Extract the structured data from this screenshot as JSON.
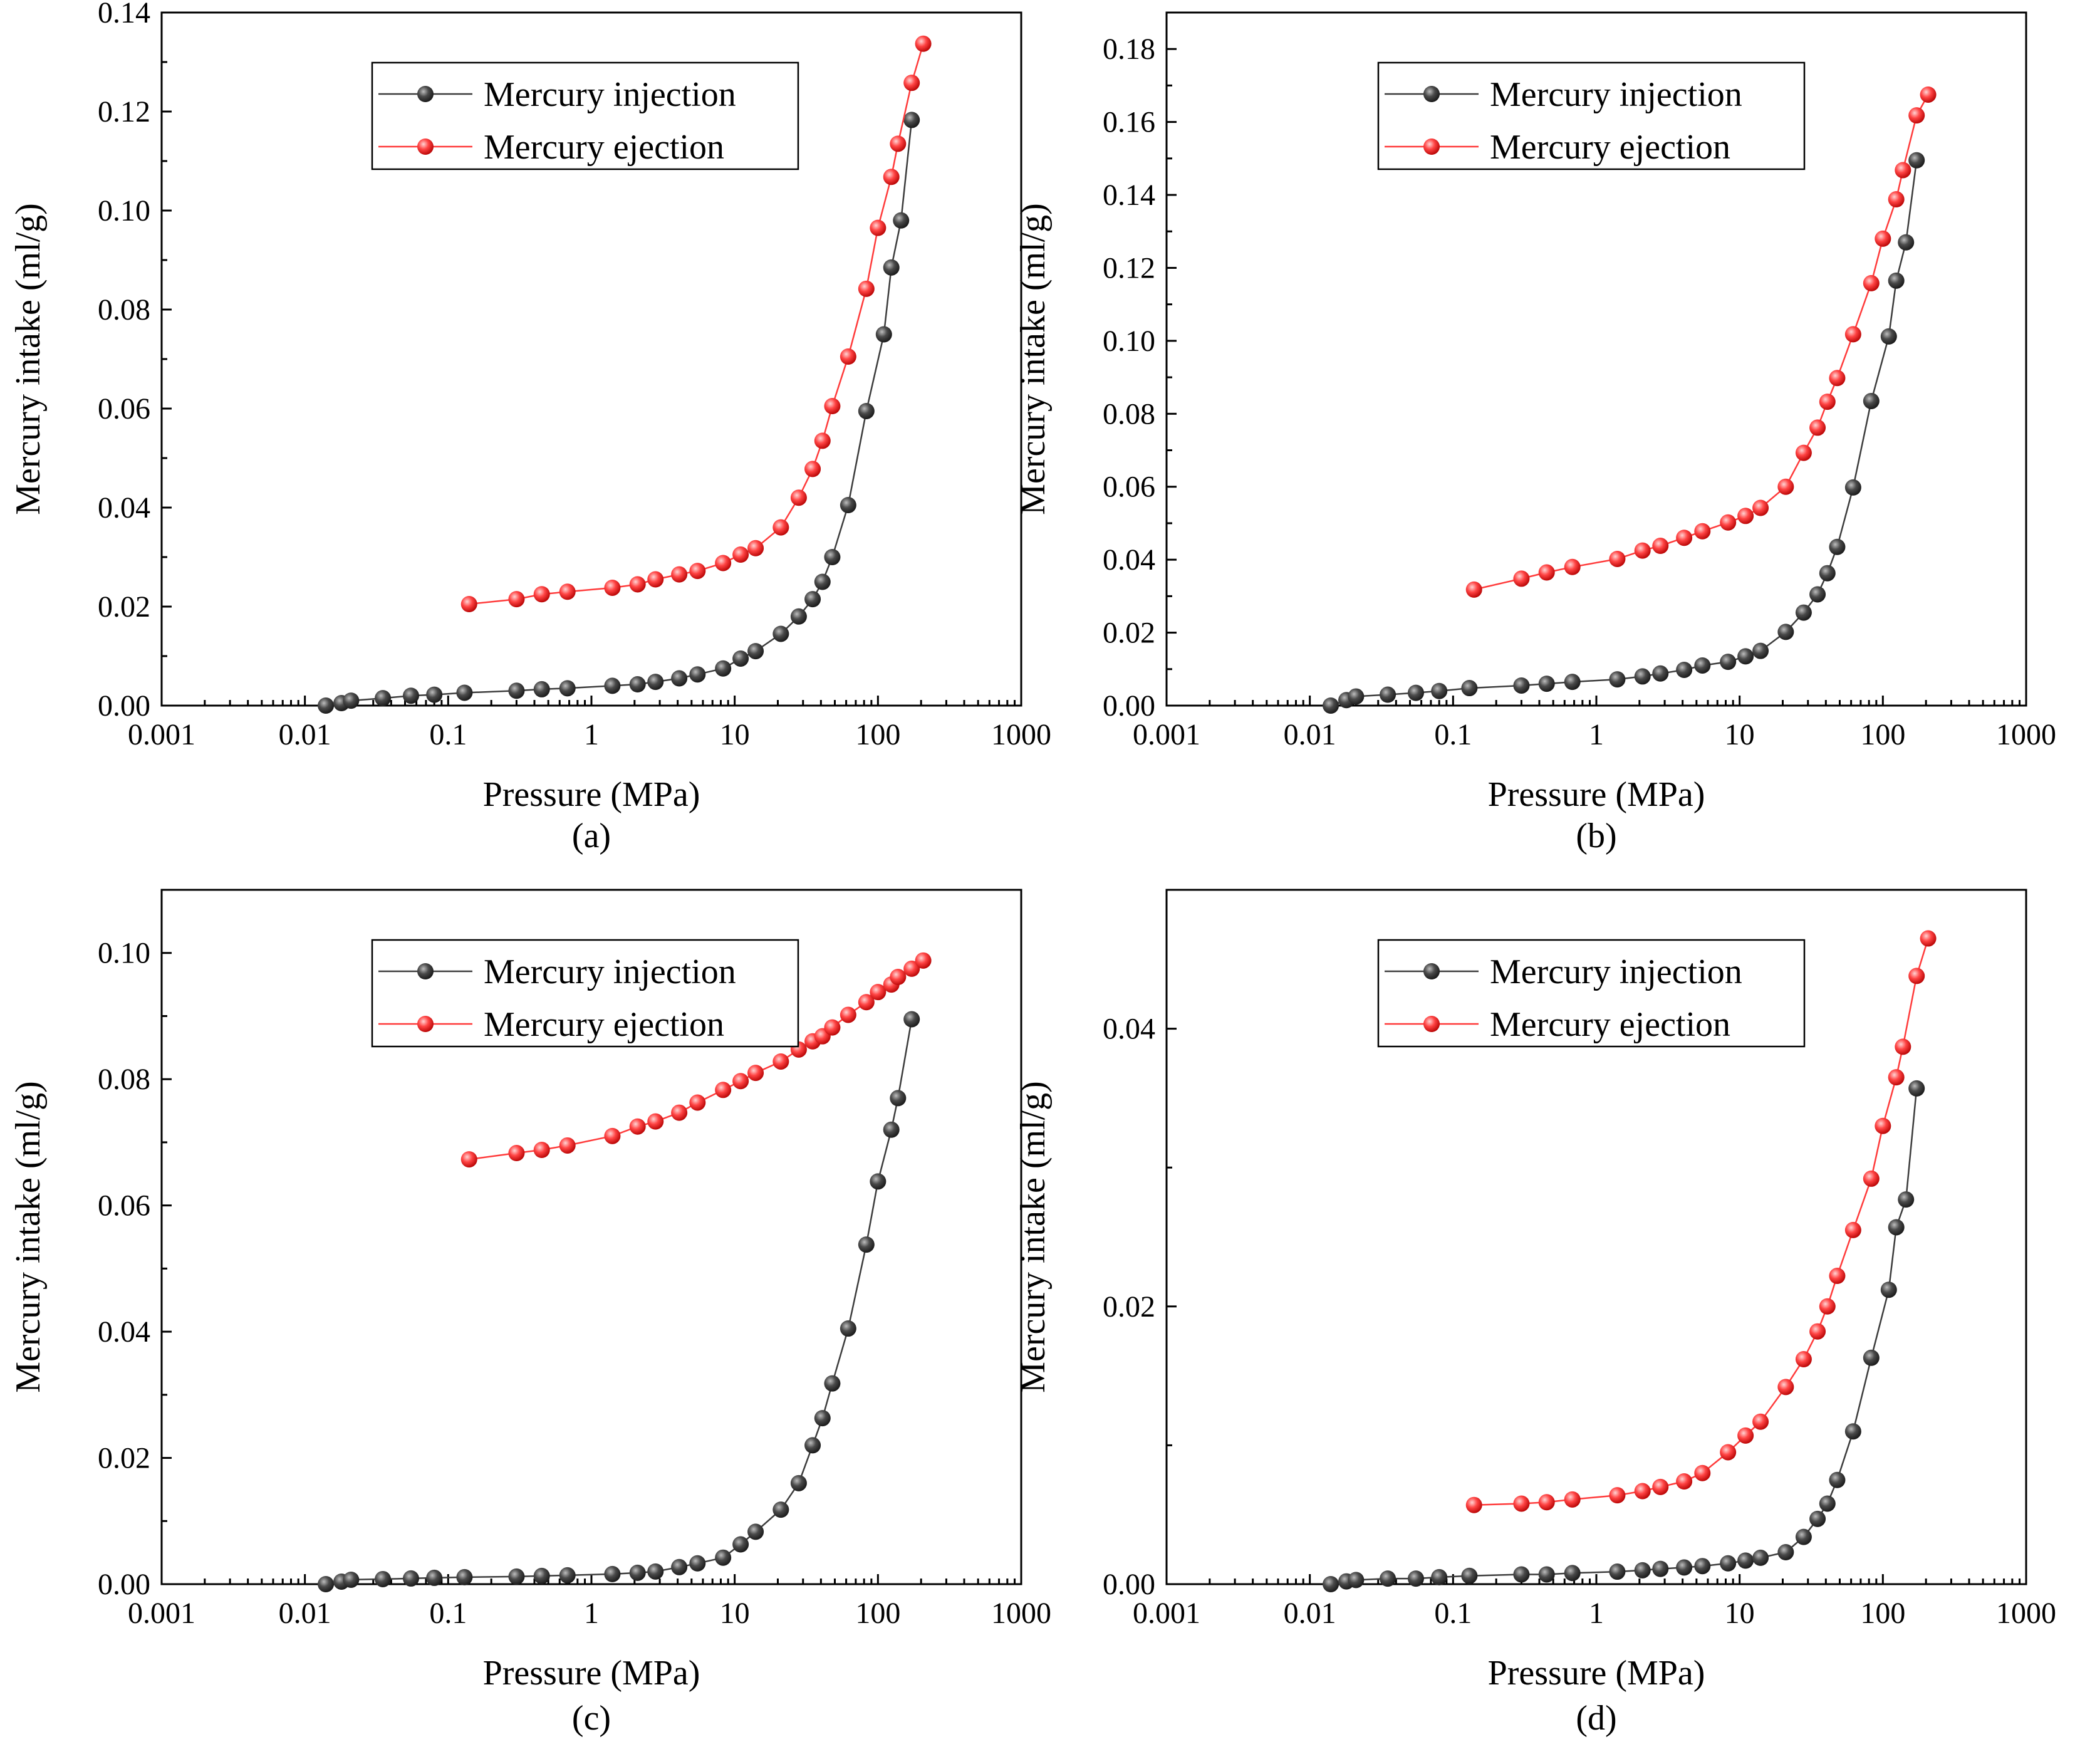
{
  "chart_data": [
    {
      "type": "scatter",
      "panel_label": "(a)",
      "xlabel": "Pressure (MPa)",
      "ylabel": "Mercury intake (ml/g)",
      "x_scale": "log",
      "xlim": [
        0.001,
        1000
      ],
      "ylim": [
        0,
        0.14
      ],
      "x_ticks": [
        "0.001",
        "0.01",
        "0.1",
        "1",
        "10",
        "100",
        "1000"
      ],
      "y_ticks": [
        "0.00",
        "0.02",
        "0.04",
        "0.06",
        "0.08",
        "0.10",
        "0.12",
        "0.14"
      ],
      "legend_position": "top-center",
      "series": [
        {
          "name": "Mercury injection",
          "color": "#3c3c3c",
          "x": [
            0.014,
            0.018,
            0.021,
            0.035,
            0.055,
            0.08,
            0.13,
            0.3,
            0.45,
            0.68,
            1.4,
            2.1,
            2.8,
            4.1,
            5.5,
            8.3,
            11,
            14,
            21,
            28,
            35,
            41,
            48,
            62,
            83,
            110,
            124,
            145,
            172
          ],
          "y": [
            0.0,
            0.0005,
            0.001,
            0.0015,
            0.002,
            0.0022,
            0.0026,
            0.003,
            0.0033,
            0.0035,
            0.004,
            0.0043,
            0.0048,
            0.0055,
            0.0063,
            0.0075,
            0.0095,
            0.011,
            0.0145,
            0.018,
            0.0215,
            0.025,
            0.03,
            0.0405,
            0.0595,
            0.075,
            0.0885,
            0.098,
            0.1183
          ]
        },
        {
          "name": "Mercury ejection",
          "color": "#ff3a3a",
          "x": [
            0.14,
            0.3,
            0.45,
            0.68,
            1.4,
            2.1,
            2.8,
            4.1,
            5.5,
            8.3,
            11,
            14,
            21,
            28,
            35,
            41,
            48,
            62,
            83,
            100,
            124,
            138,
            172,
            207
          ],
          "y": [
            0.0205,
            0.0215,
            0.0225,
            0.023,
            0.0238,
            0.0245,
            0.0255,
            0.0265,
            0.0272,
            0.0288,
            0.0305,
            0.0318,
            0.036,
            0.042,
            0.0478,
            0.0535,
            0.0605,
            0.0705,
            0.0842,
            0.0965,
            0.1068,
            0.1135,
            0.1258,
            0.1337
          ]
        }
      ]
    },
    {
      "type": "scatter",
      "panel_label": "(b)",
      "xlabel": "Pressure (MPa)",
      "ylabel": "Mercury intake (ml/g)",
      "x_scale": "log",
      "xlim": [
        0.001,
        1000
      ],
      "ylim": [
        0,
        0.19
      ],
      "x_ticks": [
        "0.001",
        "0.01",
        "0.1",
        "1",
        "10",
        "100",
        "1000"
      ],
      "y_ticks": [
        "0.00",
        "0.02",
        "0.04",
        "0.06",
        "0.08",
        "0.10",
        "0.12",
        "0.14",
        "0.16",
        "0.18"
      ],
      "legend_position": "top-center",
      "series": [
        {
          "name": "Mercury injection",
          "color": "#3c3c3c",
          "x": [
            0.014,
            0.018,
            0.021,
            0.035,
            0.055,
            0.08,
            0.13,
            0.3,
            0.45,
            0.68,
            1.4,
            2.1,
            2.8,
            4.1,
            5.5,
            8.3,
            11,
            14,
            21,
            28,
            35,
            41,
            48,
            62,
            83,
            110,
            124,
            145,
            172
          ],
          "y": [
            0.0,
            0.0015,
            0.0025,
            0.003,
            0.0035,
            0.004,
            0.0048,
            0.0055,
            0.006,
            0.0065,
            0.0072,
            0.008,
            0.0088,
            0.0098,
            0.011,
            0.012,
            0.0135,
            0.015,
            0.0202,
            0.0255,
            0.0305,
            0.0363,
            0.0435,
            0.0598,
            0.0835,
            0.1012,
            0.1165,
            0.127,
            0.1495
          ]
        },
        {
          "name": "Mercury ejection",
          "color": "#ff3a3a",
          "x": [
            0.14,
            0.3,
            0.45,
            0.68,
            1.4,
            2.1,
            2.8,
            4.1,
            5.5,
            8.3,
            11,
            14,
            21,
            28,
            35,
            41,
            48,
            62,
            83,
            100,
            124,
            138,
            172,
            207
          ],
          "y": [
            0.0318,
            0.0348,
            0.0365,
            0.038,
            0.0402,
            0.0425,
            0.0438,
            0.046,
            0.0478,
            0.0502,
            0.052,
            0.0542,
            0.06,
            0.0693,
            0.0762,
            0.0833,
            0.0898,
            0.1018,
            0.1158,
            0.128,
            0.1388,
            0.1468,
            0.1618,
            0.1675
          ]
        }
      ]
    },
    {
      "type": "scatter",
      "panel_label": "(c)",
      "xlabel": "Pressure (MPa)",
      "ylabel": "Mercury intake (ml/g)",
      "x_scale": "log",
      "xlim": [
        0.001,
        1000
      ],
      "ylim": [
        0,
        0.11
      ],
      "x_ticks": [
        "0.001",
        "0.01",
        "0.1",
        "1",
        "10",
        "100",
        "1000"
      ],
      "y_ticks": [
        "0.00",
        "0.02",
        "0.04",
        "0.06",
        "0.08",
        "0.10"
      ],
      "legend_position": "top-center",
      "series": [
        {
          "name": "Mercury injection",
          "color": "#3c3c3c",
          "x": [
            0.014,
            0.018,
            0.021,
            0.035,
            0.055,
            0.08,
            0.13,
            0.3,
            0.45,
            0.68,
            1.4,
            2.1,
            2.8,
            4.1,
            5.5,
            8.3,
            11,
            14,
            21,
            28,
            35,
            41,
            48,
            62,
            83,
            100,
            124,
            138,
            172
          ],
          "y": [
            0.0,
            0.0004,
            0.0007,
            0.0008,
            0.0009,
            0.001,
            0.0011,
            0.0012,
            0.0013,
            0.0014,
            0.0016,
            0.0018,
            0.002,
            0.0027,
            0.0033,
            0.0042,
            0.0063,
            0.0083,
            0.0118,
            0.016,
            0.022,
            0.0263,
            0.0318,
            0.0405,
            0.0538,
            0.0638,
            0.072,
            0.077,
            0.0895
          ]
        },
        {
          "name": "Mercury ejection",
          "color": "#ff3a3a",
          "x": [
            0.14,
            0.3,
            0.45,
            0.68,
            1.4,
            2.1,
            2.8,
            4.1,
            5.5,
            8.3,
            11,
            14,
            21,
            28,
            35,
            41,
            48,
            62,
            83,
            100,
            124,
            138,
            172,
            207
          ],
          "y": [
            0.0673,
            0.0683,
            0.0688,
            0.0695,
            0.071,
            0.0725,
            0.0733,
            0.0747,
            0.0763,
            0.0783,
            0.0797,
            0.081,
            0.0828,
            0.0847,
            0.086,
            0.0868,
            0.0882,
            0.0902,
            0.0922,
            0.0938,
            0.095,
            0.0962,
            0.0975,
            0.0988
          ]
        }
      ]
    },
    {
      "type": "scatter",
      "panel_label": "(d)",
      "xlabel": "Pressure (MPa)",
      "ylabel": "Mercury intake (ml/g)",
      "x_scale": "log",
      "xlim": [
        0.001,
        1000
      ],
      "ylim": [
        0,
        0.05
      ],
      "x_ticks": [
        "0.001",
        "0.01",
        "0.1",
        "1",
        "10",
        "100",
        "1000"
      ],
      "y_ticks": [
        "0.00",
        "0.02",
        "0.04"
      ],
      "y_tick_values": [
        0,
        0.02,
        0.04
      ],
      "legend_position": "top-center",
      "series": [
        {
          "name": "Mercury injection",
          "color": "#3c3c3c",
          "x": [
            0.014,
            0.018,
            0.021,
            0.035,
            0.055,
            0.08,
            0.13,
            0.3,
            0.45,
            0.68,
            1.4,
            2.1,
            2.8,
            4.1,
            5.5,
            8.3,
            11,
            14,
            21,
            28,
            35,
            41,
            48,
            62,
            83,
            110,
            124,
            145,
            172
          ],
          "y": [
            0.0,
            0.0002,
            0.0003,
            0.0004,
            0.0004,
            0.0005,
            0.0006,
            0.0007,
            0.0007,
            0.0008,
            0.0009,
            0.001,
            0.0011,
            0.0012,
            0.0013,
            0.0015,
            0.0017,
            0.0019,
            0.0023,
            0.0034,
            0.0047,
            0.0058,
            0.0075,
            0.011,
            0.0163,
            0.0212,
            0.0257,
            0.0277,
            0.0357
          ]
        },
        {
          "name": "Mercury ejection",
          "color": "#ff3a3a",
          "x": [
            0.14,
            0.3,
            0.45,
            0.68,
            1.4,
            2.1,
            2.8,
            4.1,
            5.5,
            8.3,
            11,
            14,
            21,
            28,
            35,
            41,
            48,
            62,
            83,
            100,
            124,
            138,
            172,
            207
          ],
          "y": [
            0.0057,
            0.0058,
            0.0059,
            0.0061,
            0.0064,
            0.0067,
            0.007,
            0.0074,
            0.008,
            0.0095,
            0.0107,
            0.0117,
            0.0142,
            0.0162,
            0.0182,
            0.02,
            0.0222,
            0.0255,
            0.0292,
            0.033,
            0.0365,
            0.0387,
            0.0438,
            0.0465
          ]
        }
      ]
    }
  ]
}
